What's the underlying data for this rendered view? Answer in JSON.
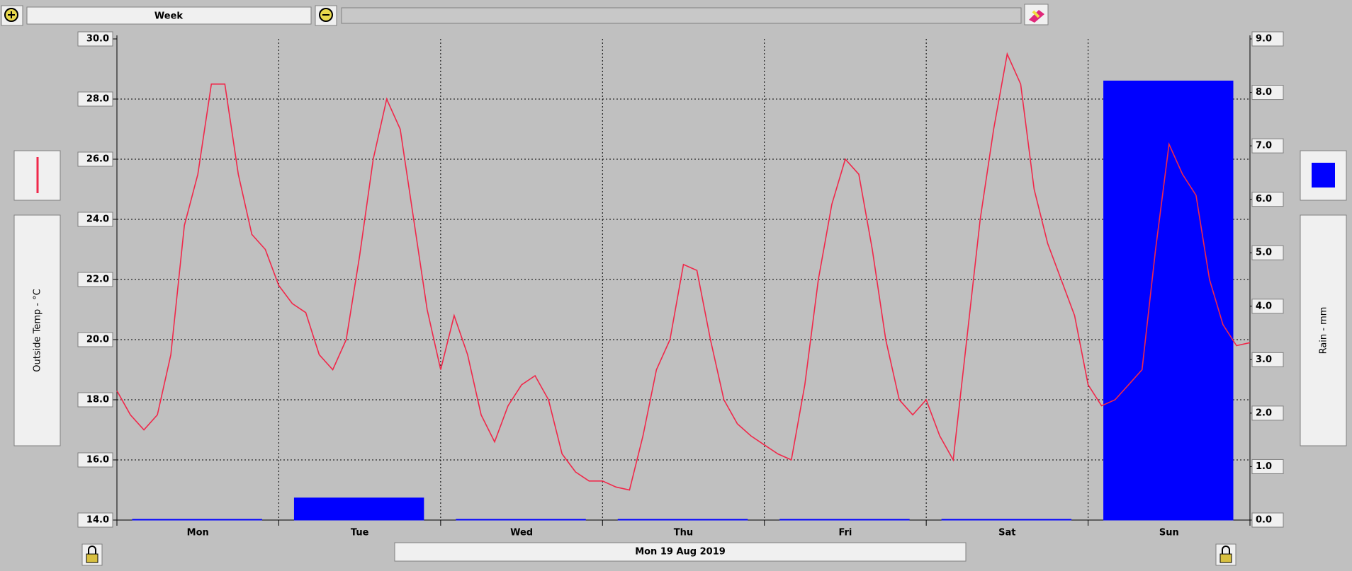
{
  "toolbar": {
    "range": "Week"
  },
  "chart_data": {
    "type": "line_bar",
    "y_label": "Outside Temp - °C",
    "y2_label": "Rain - mm",
    "categories": [
      "Mon",
      "Tue",
      "Wed",
      "Thu",
      "Fri",
      "Sat",
      "Sun"
    ],
    "xlim": [
      0,
      168
    ],
    "ylim": [
      14,
      30
    ],
    "yticks": [
      {
        "value": 14,
        "label": "14.0"
      },
      {
        "value": 16,
        "label": "16.0"
      },
      {
        "value": 18,
        "label": "18.0"
      },
      {
        "value": 20,
        "label": "20.0"
      },
      {
        "value": 22,
        "label": "22.0"
      },
      {
        "value": 24,
        "label": "24.0"
      },
      {
        "value": 26,
        "label": "26.0"
      },
      {
        "value": 28,
        "label": "28.0"
      },
      {
        "value": 30,
        "label": "30.0"
      }
    ],
    "y2lim": [
      0,
      9
    ],
    "y2ticks": [
      {
        "value": 0,
        "label": "0.0"
      },
      {
        "value": 1,
        "label": "1.0"
      },
      {
        "value": 2,
        "label": "2.0"
      },
      {
        "value": 3,
        "label": "3.0"
      },
      {
        "value": 4,
        "label": "4.0"
      },
      {
        "value": 5,
        "label": "5.0"
      },
      {
        "value": 6,
        "label": "6.0"
      },
      {
        "value": 7,
        "label": "7.0"
      },
      {
        "value": 8,
        "label": "8.0"
      },
      {
        "value": 9,
        "label": "9.0"
      }
    ],
    "grid": true,
    "series": [
      {
        "type": "line",
        "color": "#f0284a",
        "x": [
          0,
          2,
          4,
          6,
          8,
          10,
          12,
          14,
          16,
          18,
          20,
          22,
          24,
          26,
          28,
          30,
          32,
          34,
          36,
          38,
          40,
          42,
          44,
          46,
          48,
          50,
          52,
          54,
          56,
          58,
          60,
          62,
          64,
          66,
          68,
          70,
          72,
          74,
          76,
          78,
          80,
          82,
          84,
          86,
          88,
          90,
          92,
          94,
          96,
          98,
          100,
          102,
          104,
          106,
          108,
          110,
          112,
          114,
          116,
          118,
          120,
          122,
          124,
          126,
          128,
          130,
          132,
          134,
          136,
          138,
          140,
          142,
          144,
          146,
          148,
          150,
          152,
          154,
          156,
          158,
          160,
          162,
          164,
          166,
          168
        ],
        "values": [
          18.3,
          17.5,
          17.0,
          17.5,
          19.5,
          23.8,
          25.5,
          28.5,
          28.5,
          25.5,
          23.5,
          23.0,
          21.8,
          21.2,
          20.9,
          19.5,
          19.0,
          20.0,
          22.8,
          26.0,
          28.0,
          27.0,
          24.0,
          21.0,
          19.0,
          20.8,
          19.5,
          17.5,
          16.6,
          17.8,
          18.5,
          18.8,
          18.0,
          16.2,
          15.6,
          15.3,
          15.3,
          15.1,
          15.0,
          16.8,
          19.0,
          20.0,
          22.5,
          22.3,
          20.0,
          18.0,
          17.2,
          16.8,
          16.5,
          16.2,
          16.0,
          18.5,
          22.0,
          24.5,
          26.0,
          25.5,
          23.0,
          20.0,
          18.0,
          17.5,
          18.0,
          16.8,
          16.0,
          20.0,
          24.0,
          27.0,
          29.5,
          28.5,
          25.0,
          23.2,
          22.0,
          20.8,
          18.5,
          17.8,
          18.0,
          18.5,
          19.0,
          23.0,
          26.5,
          25.5,
          24.8,
          22.0,
          20.5,
          19.8,
          19.9
        ]
      },
      {
        "type": "bar",
        "axis": "y2",
        "color": "#0000ff",
        "values": [
          0,
          0.4,
          0,
          0,
          0,
          0,
          8.2
        ]
      }
    ]
  },
  "footer": {
    "date": "Mon 19 Aug 2019"
  }
}
